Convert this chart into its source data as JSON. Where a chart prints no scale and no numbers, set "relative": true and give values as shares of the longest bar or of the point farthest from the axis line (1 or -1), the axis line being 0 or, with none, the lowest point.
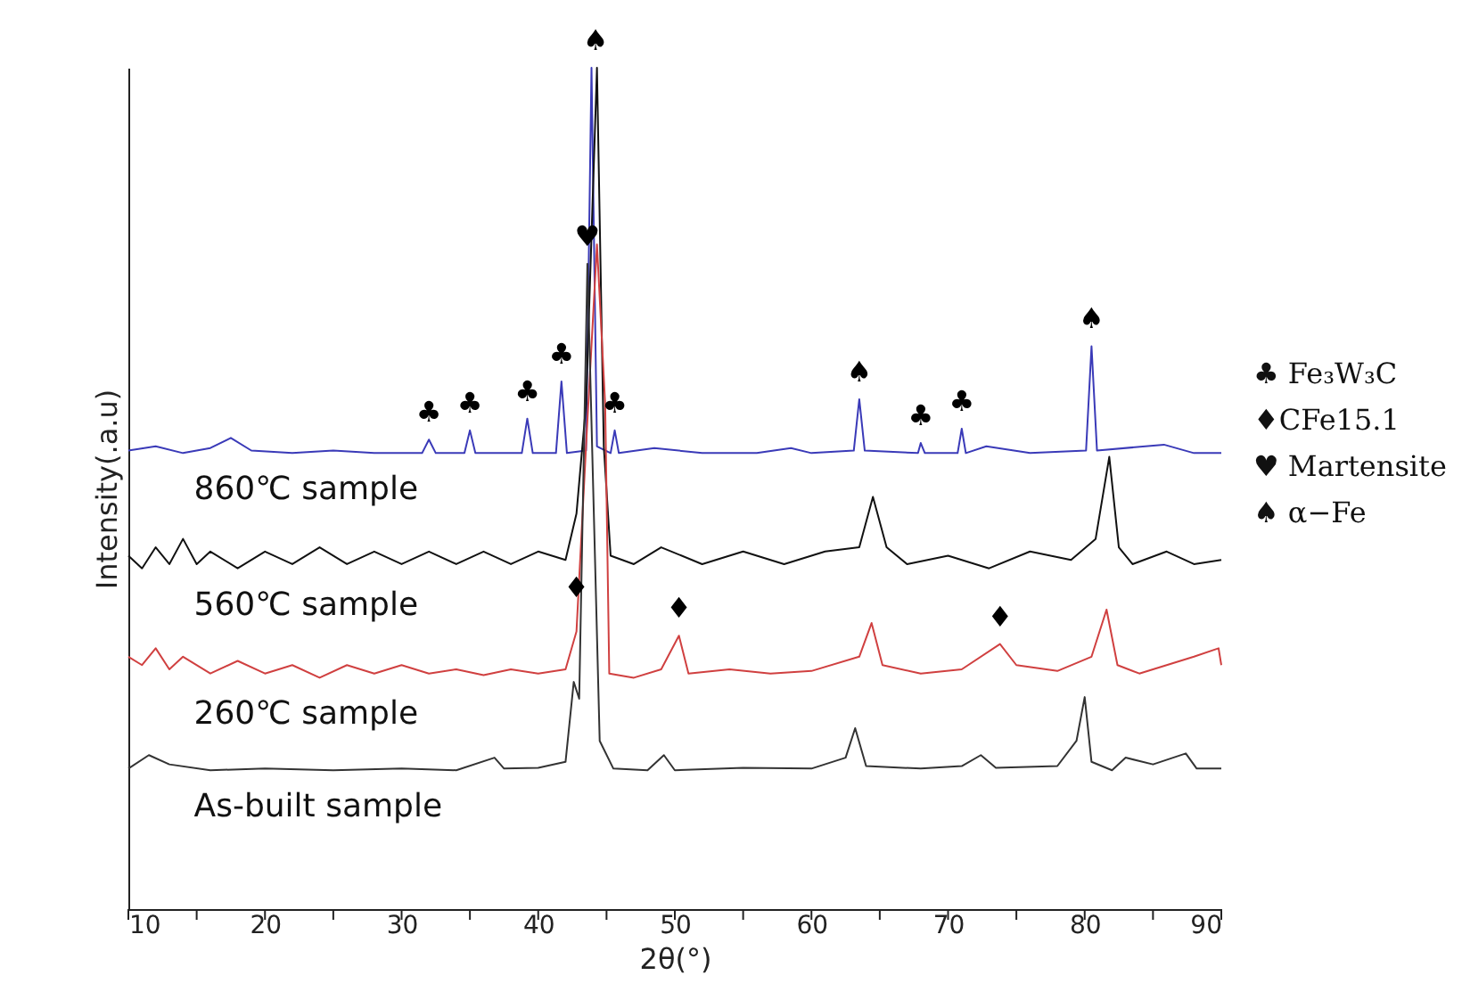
{
  "chart_data": {
    "type": "line",
    "relative": true,
    "xlabel": "2θ(°)",
    "ylabel": "Intensity(.a.u)",
    "xlim": [
      10,
      90
    ],
    "xticks": [
      10,
      {
        "value": 15,
        "label": null
      },
      20,
      {
        "value": 25,
        "label": null
      },
      30,
      {
        "value": 35,
        "label": null
      },
      40,
      {
        "value": 45,
        "label": null
      },
      50,
      {
        "value": 55,
        "label": null
      },
      60,
      {
        "value": 65,
        "label": null
      },
      70,
      {
        "value": 75,
        "label": null
      },
      80,
      {
        "value": 85,
        "label": null
      },
      90
    ],
    "grid": false,
    "series": [
      {
        "name": "860℃ sample",
        "color": "#3a3ab8",
        "x": [
          10,
          12,
          14,
          16,
          17.5,
          19,
          22,
          25,
          28,
          31.5,
          32,
          32.5,
          34.6,
          35,
          35.4,
          38.8,
          39.2,
          39.6,
          41.3,
          41.7,
          42.1,
          43.5,
          43.9,
          44.3,
          45.3,
          45.6,
          45.9,
          48.5,
          52,
          56,
          58.5,
          60,
          63.1,
          63.5,
          63.9,
          67.8,
          68,
          68.3,
          70.7,
          71,
          71.3,
          72.8,
          76,
          80.1,
          80.5,
          80.9,
          85.8,
          88,
          90
        ],
        "values": [
          0.545,
          0.55,
          0.542,
          0.548,
          0.56,
          0.545,
          0.542,
          0.545,
          0.542,
          0.542,
          0.558,
          0.542,
          0.542,
          0.569,
          0.542,
          0.542,
          0.583,
          0.542,
          0.542,
          0.627,
          0.542,
          0.545,
          1.0,
          0.55,
          0.542,
          0.569,
          0.542,
          0.548,
          0.542,
          0.542,
          0.548,
          0.542,
          0.545,
          0.606,
          0.545,
          0.542,
          0.554,
          0.542,
          0.542,
          0.571,
          0.542,
          0.55,
          0.542,
          0.545,
          0.669,
          0.545,
          0.552,
          0.542,
          0.542
        ]
      },
      {
        "name": "560℃ sample",
        "color": "#111111",
        "x": [
          10,
          11,
          12,
          13,
          14,
          15,
          16,
          18,
          20,
          22,
          24,
          26,
          28,
          30,
          32,
          34,
          36,
          38,
          40,
          42,
          42.8,
          43.5,
          44.3,
          44.8,
          45.3,
          47,
          49,
          52,
          55,
          58,
          61,
          63.5,
          64.5,
          65.5,
          67,
          70,
          73,
          76,
          79,
          80.8,
          81.8,
          82.5,
          83.5,
          86,
          88,
          90
        ],
        "values": [
          0.42,
          0.405,
          0.43,
          0.41,
          0.44,
          0.41,
          0.425,
          0.405,
          0.425,
          0.41,
          0.43,
          0.41,
          0.425,
          0.41,
          0.425,
          0.41,
          0.425,
          0.41,
          0.425,
          0.415,
          0.47,
          0.6,
          1.0,
          0.55,
          0.42,
          0.41,
          0.43,
          0.41,
          0.425,
          0.41,
          0.425,
          0.43,
          0.49,
          0.43,
          0.41,
          0.42,
          0.405,
          0.425,
          0.415,
          0.44,
          0.5375,
          0.43,
          0.41,
          0.425,
          0.41,
          0.415
        ]
      },
      {
        "name": "260℃ sample",
        "color": "#d04040",
        "x": [
          10,
          11,
          12,
          13,
          14,
          16,
          18,
          20,
          22,
          24,
          26,
          28,
          30,
          32,
          34,
          36,
          38,
          40,
          42,
          42.8,
          43.5,
          44.3,
          44.9,
          45.2,
          47,
          49,
          50.3,
          51,
          54,
          57,
          60,
          63.5,
          64.4,
          65.2,
          68,
          71,
          73.8,
          75,
          78,
          80.5,
          81.6,
          82.4,
          84,
          86,
          88,
          89.8,
          90
        ],
        "values": [
          0.3,
          0.29,
          0.31,
          0.285,
          0.3,
          0.28,
          0.295,
          0.28,
          0.29,
          0.275,
          0.29,
          0.28,
          0.29,
          0.28,
          0.285,
          0.278,
          0.285,
          0.28,
          0.285,
          0.33,
          0.55,
          0.79,
          0.6,
          0.28,
          0.275,
          0.285,
          0.325,
          0.28,
          0.285,
          0.28,
          0.283,
          0.3,
          0.34,
          0.29,
          0.28,
          0.285,
          0.315,
          0.29,
          0.283,
          0.3,
          0.356,
          0.29,
          0.28,
          0.29,
          0.3,
          0.31,
          0.29
        ]
      },
      {
        "name": "As-built sample",
        "color": "#333333",
        "x": [
          10,
          11.5,
          13,
          16,
          20,
          25,
          30,
          34,
          36.8,
          37.5,
          40,
          42,
          42.6,
          43.0,
          43.6,
          44.5,
          45.5,
          48,
          49.2,
          50,
          55,
          60,
          62.5,
          63.2,
          64,
          68,
          71,
          72.4,
          73.5,
          78,
          79.4,
          80,
          80.5,
          82,
          83,
          85,
          87.4,
          88.2,
          90
        ],
        "values": [
          0.167,
          0.183,
          0.172,
          0.165,
          0.167,
          0.165,
          0.167,
          0.165,
          0.18,
          0.167,
          0.168,
          0.175,
          0.27,
          0.25,
          0.767,
          0.2,
          0.167,
          0.165,
          0.183,
          0.165,
          0.168,
          0.167,
          0.18,
          0.215,
          0.17,
          0.167,
          0.17,
          0.183,
          0.168,
          0.17,
          0.2,
          0.252,
          0.175,
          0.165,
          0.18,
          0.172,
          0.185,
          0.167,
          0.167
        ]
      }
    ],
    "annotations": [
      {
        "text": "♣",
        "x": 32,
        "y": 0.558
      },
      {
        "text": "♣",
        "x": 35,
        "y": 0.569
      },
      {
        "text": "♣",
        "x": 39.2,
        "y": 0.583
      },
      {
        "text": "♣",
        "x": 41.7,
        "y": 0.627
      },
      {
        "text": "♣",
        "x": 45.6,
        "y": 0.569
      },
      {
        "text": "♥",
        "x": 43.6,
        "y": 0.767
      },
      {
        "text": "♠",
        "x": 44.2,
        "y": 1.0
      },
      {
        "text": "♠",
        "x": 63.5,
        "y": 0.606
      },
      {
        "text": "♣",
        "x": 68,
        "y": 0.554
      },
      {
        "text": "♣",
        "x": 71,
        "y": 0.571
      },
      {
        "text": "♠",
        "x": 80.5,
        "y": 0.669
      },
      {
        "text": "♦",
        "x": 42.8,
        "y": 0.35
      },
      {
        "text": "♦",
        "x": 50.3,
        "y": 0.325
      },
      {
        "text": "♦",
        "x": 73.8,
        "y": 0.315
      },
      "♣ Fe₃W₃C",
      "♦CFe15.1",
      "♥ Martensite",
      "♠ α−Fe"
    ]
  }
}
